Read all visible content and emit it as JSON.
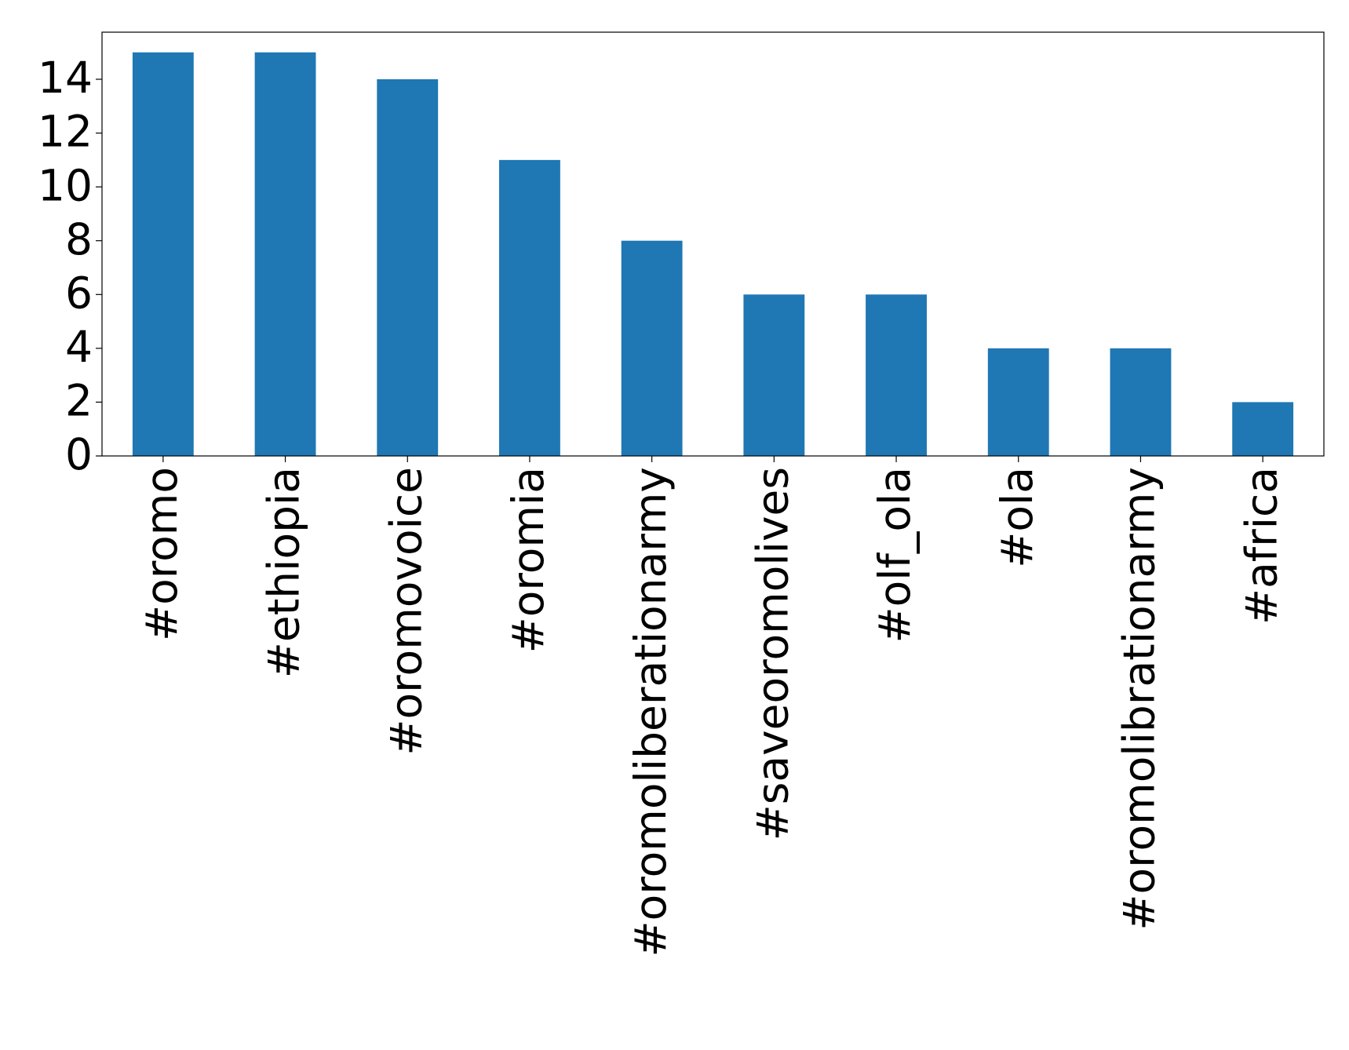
{
  "chart_data": {
    "type": "bar",
    "categories": [
      "#oromo",
      "#ethiopia",
      "#oromovoice",
      "#oromia",
      "#oromoliberationarmy",
      "#saveoromolives",
      "#olf_ola",
      "#ola",
      "#oromolibrationarmy",
      "#africa"
    ],
    "values": [
      15,
      15,
      14,
      11,
      8,
      6,
      6,
      4,
      4,
      2
    ],
    "color": "#1f77b4",
    "ylim": [
      0,
      15.75
    ],
    "yticks": [
      0,
      2,
      4,
      6,
      8,
      10,
      12,
      14
    ],
    "grid": false
  }
}
